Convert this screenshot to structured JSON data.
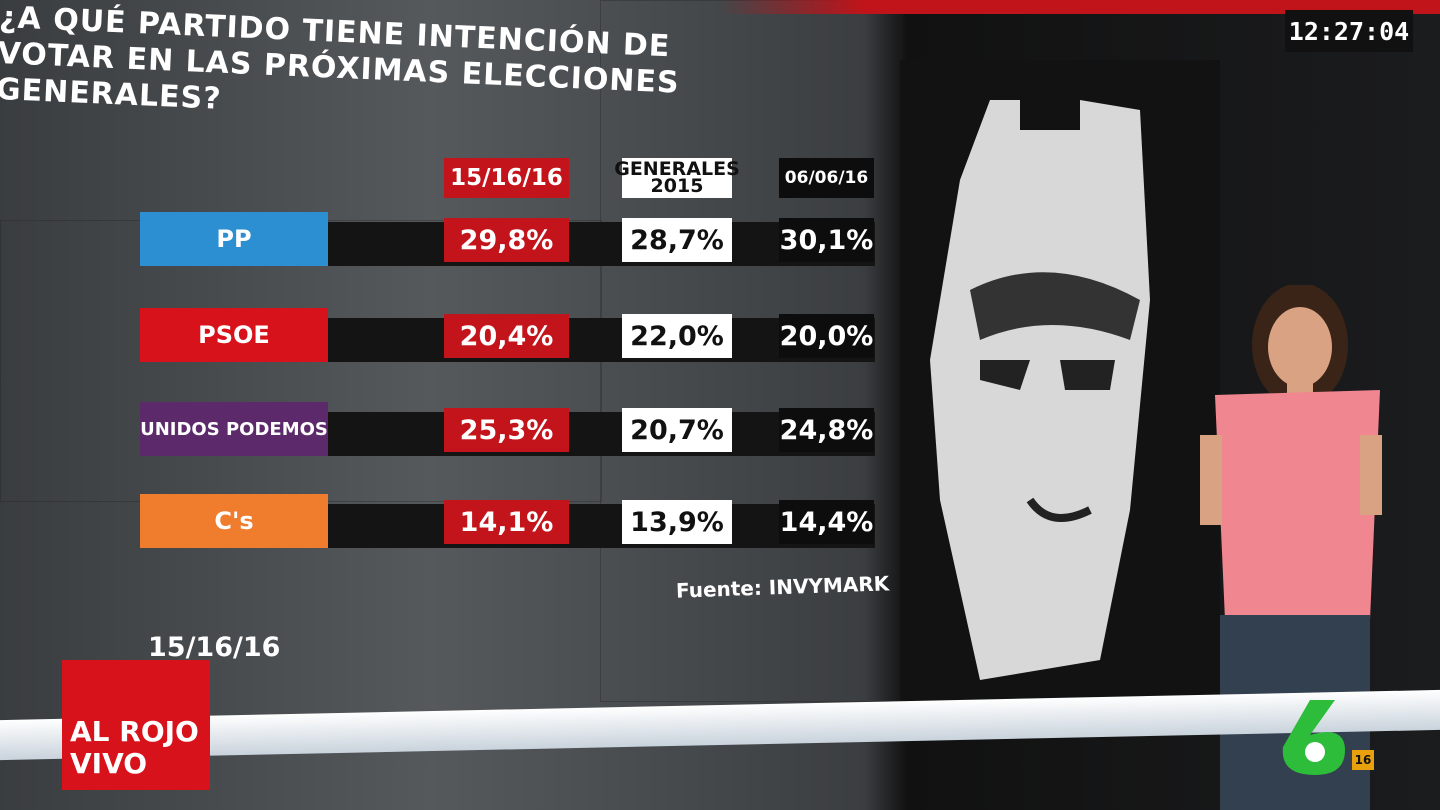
{
  "clock": "12:27:04",
  "table": {
    "title": "¿A QUÉ PARTIDO TIENE INTENCIÓN DE VOTAR EN LAS PRÓXIMAS ELECCIONES GENERALES?",
    "columns": [
      "15/16/16",
      "GENERALES 2015",
      "06/06/16"
    ],
    "rows": [
      {
        "party": "PP",
        "values": [
          "29,8%",
          "28,7%",
          "30,1%"
        ]
      },
      {
        "party": "PSOE",
        "values": [
          "20,4%",
          "22,0%",
          "20,0%"
        ]
      },
      {
        "party": "UNIDOS PODEMOS",
        "values": [
          "25,3%",
          "20,7%",
          "24,8%"
        ]
      },
      {
        "party": "C's",
        "values": [
          "14,1%",
          "13,9%",
          "14,4%"
        ]
      }
    ],
    "source": "Fuente: INVYMARK"
  },
  "date": "15/16/16",
  "show_logo": "AL ROJO VIVO",
  "channel_badge": "16"
}
